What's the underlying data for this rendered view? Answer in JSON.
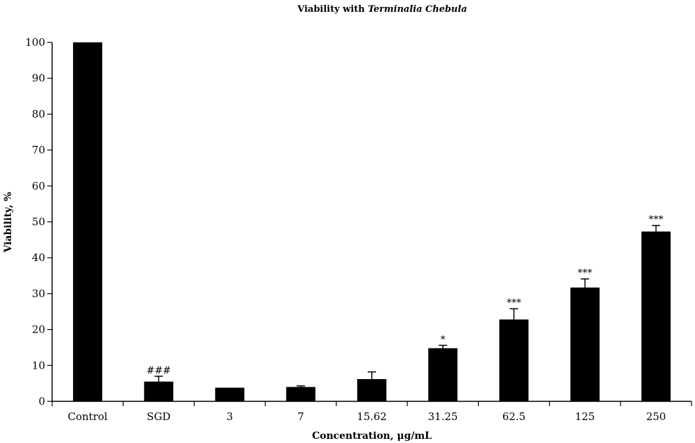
{
  "chart_data": {
    "type": "bar",
    "title_prefix": "Viability with ",
    "title_italic": "Terminalia Chebula",
    "xlabel": "Concentration, μg/mL",
    "ylabel": "Viability, %",
    "ylim": [
      0,
      100
    ],
    "yticks": [
      0,
      10,
      20,
      30,
      40,
      50,
      60,
      70,
      80,
      90,
      100
    ],
    "categories": [
      "Control",
      "SGD",
      "3",
      "7",
      "15.62",
      "31.25",
      "62.5",
      "125",
      "250"
    ],
    "values": [
      100,
      5.5,
      3.8,
      4.0,
      6.2,
      14.8,
      22.8,
      31.7,
      47.3
    ],
    "errors": [
      0,
      1.5,
      0,
      0.3,
      2.0,
      0.8,
      3.0,
      2.4,
      1.7
    ],
    "annotations": [
      "",
      "###",
      "",
      "",
      "",
      "*",
      "***",
      "***",
      "***"
    ],
    "grid": false,
    "bar_color": "#000000"
  }
}
